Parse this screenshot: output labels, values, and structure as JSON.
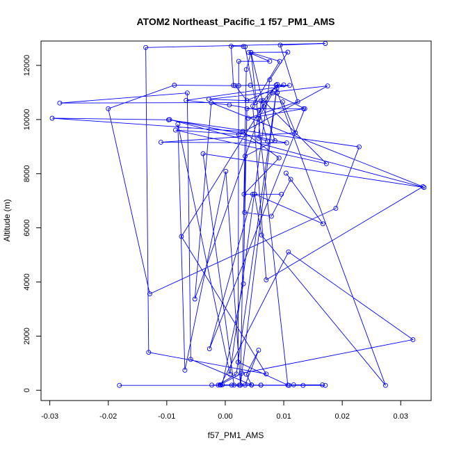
{
  "chart_data": {
    "type": "line",
    "title": "ATOM2 Northeast_Pacific_1 f57_PM1_AMS",
    "xlabel": "f57_PM1_AMS",
    "ylabel": "Altitude (m)",
    "xlim": [
      -0.0315,
      0.0352
    ],
    "ylim": [
      -380,
      12900
    ],
    "xticks": [
      -0.03,
      -0.02,
      -0.01,
      0.0,
      0.01,
      0.02,
      0.03
    ],
    "xtick_labels": [
      "-0.03",
      "-0.02",
      "-0.01",
      "0.00",
      "0.01",
      "0.02",
      "0.03"
    ],
    "yticks": [
      0,
      2000,
      4000,
      6000,
      8000,
      10000,
      12000
    ],
    "ytick_labels": [
      "0",
      "2000",
      "4000",
      "6000",
      "8000",
      "10000",
      "12000"
    ],
    "grid": false,
    "legend": "none",
    "series": [
      {
        "color": "#0000ff",
        "marker": "open-circle",
        "points": [
          {
            "x": -0.0181,
            "y": 180
          },
          {
            "x": 0.0171,
            "y": 180
          },
          {
            "x": 0.0133,
            "y": 180
          },
          {
            "x": 0.0109,
            "y": 180
          },
          {
            "x": 0.0117,
            "y": 200
          },
          {
            "x": 0.0166,
            "y": 200
          },
          {
            "x": 0.0061,
            "y": 190
          },
          {
            "x": 0.0034,
            "y": 190
          },
          {
            "x": 0.0057,
            "y": 1480
          },
          {
            "x": 0.0036,
            "y": 590
          },
          {
            "x": 0.0045,
            "y": 190
          },
          {
            "x": -0.0005,
            "y": 200
          },
          {
            "x": 0.0031,
            "y": 3930
          },
          {
            "x": 0.0037,
            "y": 10400
          },
          {
            "x": 0.0134,
            "y": 10400
          },
          {
            "x": 0.0039,
            "y": 10050
          },
          {
            "x": 0.0124,
            "y": 10660
          },
          {
            "x": 0.0094,
            "y": 12750
          },
          {
            "x": 0.0171,
            "y": 12810
          },
          {
            "x": -0.0136,
            "y": 12660
          },
          {
            "x": -0.0131,
            "y": 1400
          },
          {
            "x": 0.007,
            "y": 600
          },
          {
            "x": -0.0075,
            "y": 5680
          },
          {
            "x": 0.0087,
            "y": 11270
          },
          {
            "x": 0.01,
            "y": 11280
          },
          {
            "x": 0.0037,
            "y": 10700
          },
          {
            "x": 0.0017,
            "y": 11250
          },
          {
            "x": -0.0087,
            "y": 11270
          },
          {
            "x": -0.02,
            "y": 10400
          },
          {
            "x": -0.0129,
            "y": 3560
          },
          {
            "x": 0.0189,
            "y": 6720
          },
          {
            "x": 0.0229,
            "y": 8990
          },
          {
            "x": -0.0097,
            "y": 9990
          },
          {
            "x": -0.0296,
            "y": 10050
          },
          {
            "x": 0.003,
            "y": 9560
          },
          {
            "x": 0.0092,
            "y": 8580
          },
          {
            "x": 0.0032,
            "y": 7240
          },
          {
            "x": 0.0096,
            "y": 7240
          },
          {
            "x": 0.0047,
            "y": 7240
          },
          {
            "x": -0.0027,
            "y": 1530
          },
          {
            "x": 0.0136,
            "y": 10400
          },
          {
            "x": 0.0081,
            "y": 10980
          },
          {
            "x": 0.0057,
            "y": 10050
          },
          {
            "x": -0.0052,
            "y": 3370
          },
          {
            "x": -0.0024,
            "y": 10620
          },
          {
            "x": 0.0338,
            "y": 7520
          },
          {
            "x": 0.007,
            "y": 4080
          },
          {
            "x": 0.0047,
            "y": 10500
          },
          {
            "x": 0.0093,
            "y": 12150
          },
          {
            "x": 0.0044,
            "y": 12470
          },
          {
            "x": 0.0036,
            "y": 11850
          },
          {
            "x": 0.0026,
            "y": 190
          },
          {
            "x": 0.0011,
            "y": 190
          },
          {
            "x": -0.0012,
            "y": 190
          },
          {
            "x": 0.0019,
            "y": 600
          },
          {
            "x": 0.0089,
            "y": 11300
          },
          {
            "x": 0.0065,
            "y": 10700
          },
          {
            "x": 0.0173,
            "y": 8370
          },
          {
            "x": -0.0085,
            "y": 9610
          },
          {
            "x": 0.0023,
            "y": 9450
          },
          {
            "x": 0.0175,
            "y": 11240
          },
          {
            "x": -0.0028,
            "y": 10750
          },
          {
            "x": 0.0098,
            "y": 10650
          },
          {
            "x": 0.012,
            "y": 9510
          },
          {
            "x": -0.011,
            "y": 9160
          },
          {
            "x": 0.0105,
            "y": 9140
          },
          {
            "x": -0.0095,
            "y": 10000
          },
          {
            "x": 0.034,
            "y": 7490
          },
          {
            "x": -0.0038,
            "y": 8740
          },
          {
            "x": 0.0015,
            "y": 190
          },
          {
            "x": -0.0023,
            "y": 190
          },
          {
            "x": 0.0061,
            "y": 190
          },
          {
            "x": 0.0024,
            "y": 190
          },
          {
            "x": -0.0008,
            "y": 190
          },
          {
            "x": 0.0108,
            "y": 5110
          },
          {
            "x": 0.0321,
            "y": 1870
          },
          {
            "x": 0.0028,
            "y": 630
          },
          {
            "x": -0.0009,
            "y": 200
          },
          {
            "x": 0.0045,
            "y": 200
          },
          {
            "x": -0.0059,
            "y": 1140
          },
          {
            "x": -0.0065,
            "y": 10980
          },
          {
            "x": -0.0283,
            "y": 10610
          },
          {
            "x": 0.0052,
            "y": 10630
          },
          {
            "x": 0.0034,
            "y": 12690
          },
          {
            "x": 0.0031,
            "y": 12700
          },
          {
            "x": 0.001,
            "y": 12710
          },
          {
            "x": 0.0014,
            "y": 11260
          },
          {
            "x": 0.0023,
            "y": 11250
          },
          {
            "x": 0.0043,
            "y": 11270
          },
          {
            "x": 0.011,
            "y": 11260
          },
          {
            "x": -0.0067,
            "y": 10710
          },
          {
            "x": 0.0007,
            "y": 10540
          },
          {
            "x": 0.0058,
            "y": 10350
          },
          {
            "x": 0.0072,
            "y": 9200
          },
          {
            "x": 0.0057,
            "y": 9310
          },
          {
            "x": 0.0061,
            "y": 10690
          },
          {
            "x": 0.0085,
            "y": 9220
          },
          {
            "x": 0.0034,
            "y": 8650
          },
          {
            "x": 0.0033,
            "y": 6570
          },
          {
            "x": 0.0079,
            "y": 6430
          },
          {
            "x": 0.0112,
            "y": 7790
          },
          {
            "x": 0.0104,
            "y": 8020
          },
          {
            "x": 0.0167,
            "y": 6150
          },
          {
            "x": 0.005,
            "y": 7250
          },
          {
            "x": 0.0062,
            "y": 5730
          },
          {
            "x": 0.0274,
            "y": 180
          },
          {
            "x": 0.0089,
            "y": 11000
          },
          {
            "x": 0.0088,
            "y": 11160
          },
          {
            "x": 0.0026,
            "y": 190
          },
          {
            "x": 0.0001,
            "y": 8090
          },
          {
            "x": -0.0069,
            "y": 740
          },
          {
            "x": -0.0081,
            "y": 9830
          },
          {
            "x": 0.0008,
            "y": 590
          },
          {
            "x": 0.0076,
            "y": 11470
          },
          {
            "x": 0.0107,
            "y": 12490
          },
          {
            "x": 0.004,
            "y": 12480
          },
          {
            "x": 0.0076,
            "y": 12150
          },
          {
            "x": 0.0023,
            "y": 12150
          },
          {
            "x": 0.0022,
            "y": 1040
          },
          {
            "x": 0.0107,
            "y": 190
          },
          {
            "x": 0.0044,
            "y": 12480
          },
          {
            "x": 0.0066,
            "y": 10470
          }
        ]
      }
    ]
  }
}
